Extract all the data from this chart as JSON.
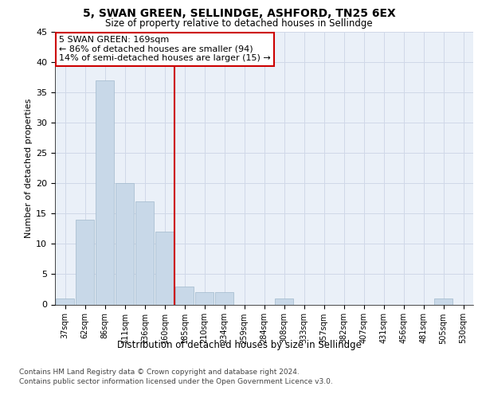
{
  "title": "5, SWAN GREEN, SELLINDGE, ASHFORD, TN25 6EX",
  "subtitle": "Size of property relative to detached houses in Sellindge",
  "xlabel": "Distribution of detached houses by size in Sellindge",
  "ylabel": "Number of detached properties",
  "bar_labels": [
    "37sqm",
    "62sqm",
    "86sqm",
    "111sqm",
    "136sqm",
    "160sqm",
    "185sqm",
    "210sqm",
    "234sqm",
    "259sqm",
    "284sqm",
    "308sqm",
    "333sqm",
    "357sqm",
    "382sqm",
    "407sqm",
    "431sqm",
    "456sqm",
    "481sqm",
    "505sqm",
    "530sqm"
  ],
  "bar_values": [
    1,
    14,
    37,
    20,
    17,
    12,
    3,
    2,
    2,
    0,
    0,
    1,
    0,
    0,
    0,
    0,
    0,
    0,
    0,
    1,
    0
  ],
  "bar_color": "#c8d8e8",
  "bar_edgecolor": "#a0b8cc",
  "property_line_index": 5.5,
  "annotation_text": "5 SWAN GREEN: 169sqm\n← 86% of detached houses are smaller (94)\n14% of semi-detached houses are larger (15) →",
  "annotation_box_color": "#ffffff",
  "annotation_border_color": "#cc0000",
  "vline_color": "#cc0000",
  "grid_color": "#d0d8e8",
  "background_color": "#eaf0f8",
  "ylim": [
    0,
    45
  ],
  "yticks": [
    0,
    5,
    10,
    15,
    20,
    25,
    30,
    35,
    40,
    45
  ],
  "footer_line1": "Contains HM Land Registry data © Crown copyright and database right 2024.",
  "footer_line2": "Contains public sector information licensed under the Open Government Licence v3.0."
}
